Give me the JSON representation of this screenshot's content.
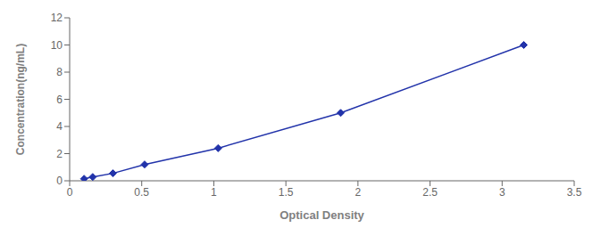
{
  "chart_data": {
    "type": "line",
    "x": [
      0.1,
      0.16,
      0.3,
      0.52,
      1.03,
      1.88,
      3.15
    ],
    "values": [
      0.15,
      0.28,
      0.55,
      1.2,
      2.4,
      5.0,
      10.0
    ],
    "color": "#2233aa",
    "marker": "diamond",
    "xlabel": "Optical Density",
    "ylabel": "Concentration(ng/mL)",
    "xlim": [
      0,
      3.5
    ],
    "ylim": [
      0,
      12
    ],
    "xticks": [
      0,
      0.5,
      1,
      1.5,
      2,
      2.5,
      3,
      3.5
    ],
    "yticks": [
      0,
      2,
      4,
      6,
      8,
      10,
      12
    ],
    "grid": false
  }
}
